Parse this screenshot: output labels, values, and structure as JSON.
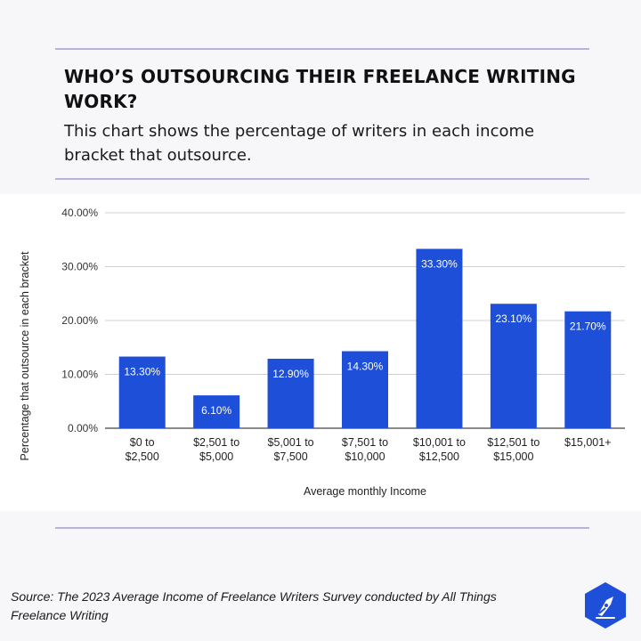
{
  "header": {
    "title": "WHO’S OUTSOURCING THEIR FREELANCE WRITING WORK?",
    "subtitle": "This chart shows the percentage of writers in each income bracket that outsource."
  },
  "footer": {
    "source": "Source: The 2023 Average Income of Freelance Writers Survey conducted by All Things Freelance Writing"
  },
  "logo": {
    "icon": "fountain-pen-nib-icon",
    "color": "#1d4fd8"
  },
  "chart_data": {
    "type": "bar",
    "categories": [
      [
        "$0 to",
        "$2,500"
      ],
      [
        "$2,501 to",
        "$5,000"
      ],
      [
        "$5,001 to",
        "$7,500"
      ],
      [
        "$7,501 to",
        "$10,000"
      ],
      [
        "$10,001 to",
        "$12,500"
      ],
      [
        "$12,501 to",
        "$15,000"
      ],
      [
        "$15,001+"
      ]
    ],
    "values": [
      13.3,
      6.1,
      12.9,
      14.3,
      33.3,
      23.1,
      21.7
    ],
    "data_labels": [
      "13.30%",
      "6.10%",
      "12.90%",
      "14.30%",
      "33.30%",
      "23.10%",
      "21.70%"
    ],
    "ytick_values": [
      0,
      10,
      20,
      30,
      40
    ],
    "ytick_labels": [
      "0.00%",
      "10.00%",
      "20.00%",
      "30.00%",
      "40.00%"
    ],
    "xlabel": "Average monthly Income",
    "ylabel": "Percentage that outsource in each bracket",
    "ylim": [
      0,
      40
    ],
    "grid": true,
    "bar_color": "#1d4fd8"
  }
}
